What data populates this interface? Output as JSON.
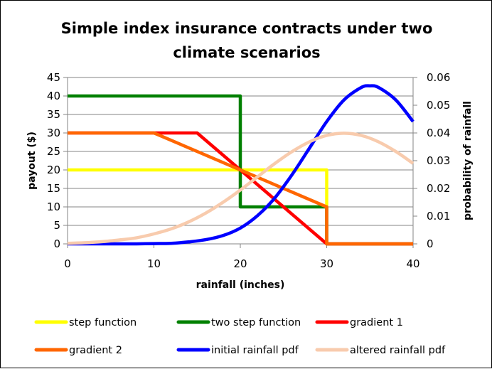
{
  "chart_data": {
    "type": "line",
    "title_lines": [
      "Simple index insurance contracts under two",
      "climate scenarios"
    ],
    "xlabel": "rainfall (inches)",
    "ylabel": "payout ($)",
    "y2label": "probability of rainfall",
    "xlim": [
      0,
      40
    ],
    "ylim": [
      0,
      45
    ],
    "y2lim": [
      0,
      0.06
    ],
    "x_ticks": [
      "0",
      "10",
      "20",
      "30",
      "40"
    ],
    "x_tick_values": [
      0,
      10,
      20,
      30,
      40
    ],
    "y_ticks": [
      "0",
      "5",
      "10",
      "15",
      "20",
      "25",
      "30",
      "35",
      "40",
      "45"
    ],
    "y_tick_values": [
      0,
      5,
      10,
      15,
      20,
      25,
      30,
      35,
      40,
      45
    ],
    "y2_ticks": [
      "0",
      "0.01",
      "0.02",
      "0.03",
      "0.04",
      "0.05",
      "0.06"
    ],
    "y2_tick_values": [
      0,
      0.01,
      0.02,
      0.03,
      0.04,
      0.05,
      0.06
    ],
    "grid": "horizontal",
    "legend_position": "bottom",
    "series": [
      {
        "name": "step function",
        "axis": "left",
        "color": "#FFFF00",
        "x": [
          0,
          30,
          30,
          40
        ],
        "y": [
          20,
          20,
          0,
          0
        ]
      },
      {
        "name": "two step function",
        "axis": "left",
        "color": "#008000",
        "x": [
          0,
          20,
          20,
          30,
          30,
          40
        ],
        "y": [
          40,
          40,
          10,
          10,
          0,
          0
        ]
      },
      {
        "name": "gradient 1",
        "axis": "left",
        "color": "#FF0000",
        "x": [
          0,
          15,
          30,
          40
        ],
        "y": [
          30,
          30,
          0,
          0
        ]
      },
      {
        "name": "gradient 2",
        "axis": "left",
        "color": "#FF6600",
        "x": [
          0,
          10,
          30,
          30,
          40
        ],
        "y": [
          30,
          30,
          10,
          0,
          0
        ]
      },
      {
        "name": "initial rainfall pdf",
        "axis": "right",
        "color": "#0000FF",
        "x": [
          0,
          2,
          4,
          6,
          8,
          10,
          12,
          14,
          16,
          18,
          20,
          22,
          24,
          26,
          28,
          30,
          32,
          34,
          35,
          36,
          38,
          40
        ],
        "y": [
          0.0,
          0.0,
          0.0,
          0.0,
          0.0,
          0.0001,
          0.0002,
          0.0007,
          0.0015,
          0.003,
          0.0057,
          0.0102,
          0.0166,
          0.025,
          0.0345,
          0.0441,
          0.0519,
          0.0564,
          0.057,
          0.0564,
          0.0519,
          0.0441
        ]
      },
      {
        "name": "altered rainfall pdf",
        "axis": "right",
        "color": "#F8CBAD",
        "x": [
          0,
          2,
          4,
          6,
          8,
          10,
          12,
          14,
          16,
          18,
          20,
          22,
          24,
          26,
          28,
          30,
          32,
          34,
          36,
          38,
          40
        ],
        "y": [
          0.0002,
          0.0004,
          0.0008,
          0.0014,
          0.0022,
          0.0036,
          0.0054,
          0.0079,
          0.0111,
          0.015,
          0.0194,
          0.0242,
          0.029,
          0.0333,
          0.0368,
          0.0391,
          0.0399,
          0.0391,
          0.0368,
          0.0333,
          0.029
        ]
      }
    ]
  }
}
